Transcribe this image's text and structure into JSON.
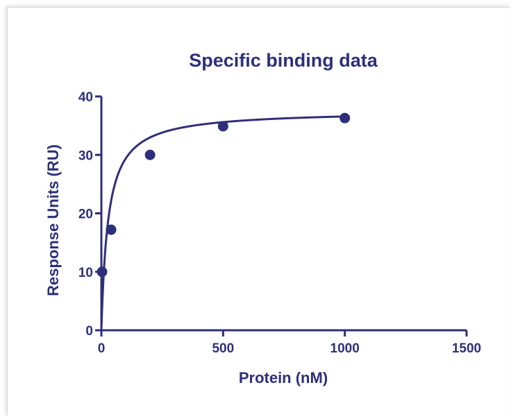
{
  "chart_data": {
    "type": "scatter",
    "title": "Specific binding data",
    "xlabel": "Protein (nM)",
    "ylabel": "Response Units (RU)",
    "xlim": [
      0,
      1500
    ],
    "ylim": [
      0,
      40
    ],
    "xticks": [
      "0",
      "500",
      "1000",
      "1500"
    ],
    "yticks": [
      "0",
      "10",
      "20",
      "30",
      "40"
    ],
    "grid": false,
    "color": "#2e2f7a",
    "series": [
      {
        "x": [
          3,
          40,
          200,
          500,
          1000
        ],
        "y": [
          10,
          17.2,
          30,
          34.9,
          36.3
        ]
      }
    ],
    "fit": {
      "model": "one-site specific binding",
      "bmax": 37.6,
      "kd": 28,
      "x_range": [
        0,
        1000
      ]
    }
  }
}
